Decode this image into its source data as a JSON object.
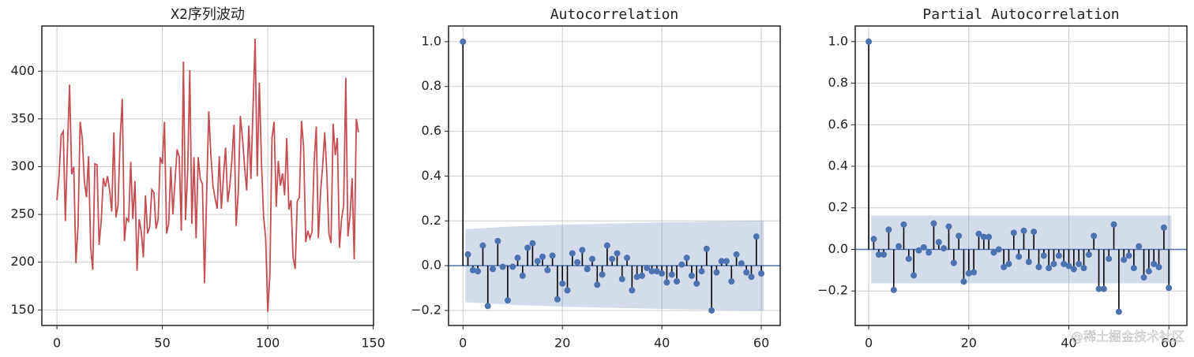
{
  "chart_data": [
    {
      "type": "line",
      "title": "X2序列波动",
      "color": "#c44e52",
      "grid": true,
      "xlim": [
        -7.15,
        150.15
      ],
      "xticks": [
        0,
        50,
        100,
        150
      ],
      "ylim": [
        133.75,
        447.25
      ],
      "yticks": [
        150,
        200,
        250,
        300,
        350,
        400
      ],
      "values": [
        265,
        290,
        333,
        337,
        243,
        320,
        386,
        292,
        300,
        199,
        237,
        347,
        330,
        285,
        268,
        311,
        216,
        192,
        303,
        302,
        218,
        243,
        288,
        279,
        290,
        275,
        253,
        336,
        247,
        260,
        330,
        371,
        222,
        246,
        243,
        305,
        245,
        285,
        191,
        245,
        232,
        205,
        270,
        230,
        237,
        276,
        273,
        235,
        245,
        310,
        303,
        347,
        230,
        240,
        300,
        250,
        285,
        318,
        310,
        233,
        410,
        244,
        295,
        401,
        240,
        310,
        225,
        310,
        287,
        282,
        178,
        270,
        358,
        313,
        280,
        267,
        256,
        311,
        256,
        290,
        320,
        263,
        280,
        308,
        344,
        238,
        273,
        353,
        330,
        300,
        275,
        343,
        287,
        361,
        434,
        290,
        388,
        305,
        248,
        225,
        148,
        188,
        330,
        347,
        258,
        306,
        280,
        293,
        270,
        330,
        255,
        265,
        205,
        193,
        264,
        268,
        348,
        320,
        221,
        233,
        225,
        232,
        305,
        342,
        225,
        272,
        300,
        336,
        294,
        230,
        220,
        345,
        312,
        330,
        215,
        245,
        260,
        393,
        227,
        248,
        288,
        203,
        350,
        336
      ]
    },
    {
      "type": "stem",
      "title": "Autocorrelation",
      "color": "#4c72b0",
      "grid": true,
      "xlim": [
        -2.9,
        63.8
      ],
      "xticks": [
        0,
        20,
        40,
        60
      ],
      "ylim": [
        -0.267,
        1.07
      ],
      "yticks": [
        {
          "value": -0.2,
          "label": "−0.2"
        },
        {
          "value": 0,
          "label": "0.0"
        },
        0.2,
        0.4,
        0.6,
        0.8,
        {
          "value": 1,
          "label": "1.0"
        }
      ],
      "confint_x": [
        0.5,
        10,
        20,
        30,
        40,
        50,
        60.5
      ],
      "confint": [
        0.163,
        0.175,
        0.183,
        0.188,
        0.193,
        0.197,
        0.2
      ],
      "values": [
        1.0,
        0.05,
        -0.02,
        -0.025,
        0.09,
        -0.18,
        -0.015,
        0.11,
        -0.005,
        -0.155,
        -0.005,
        0.035,
        -0.045,
        0.08,
        0.1,
        0.02,
        0.04,
        -0.02,
        0.045,
        -0.15,
        -0.08,
        -0.11,
        0.055,
        0.015,
        0.07,
        -0.015,
        0.03,
        -0.085,
        -0.04,
        0.09,
        0.03,
        0.055,
        -0.06,
        0.035,
        -0.11,
        -0.05,
        -0.045,
        -0.01,
        -0.025,
        -0.025,
        -0.035,
        -0.075,
        -0.04,
        -0.07,
        0.005,
        0.035,
        -0.045,
        -0.08,
        -0.025,
        0.075,
        -0.2,
        -0.03,
        0.02,
        0.02,
        -0.07,
        0.05,
        0.01,
        -0.03,
        -0.05,
        0.13,
        -0.035
      ]
    },
    {
      "type": "stem",
      "title": "Partial Autocorrelation",
      "color": "#4c72b0",
      "grid": true,
      "xlim": [
        -2.7,
        63.6
      ],
      "xticks": [
        0,
        20,
        40,
        60
      ],
      "ylim": [
        -0.366,
        1.075
      ],
      "yticks": [
        {
          "value": -0.2,
          "label": "−0.2"
        },
        {
          "value": 0,
          "label": "0.0"
        },
        0.2,
        0.4,
        0.6,
        0.8,
        {
          "value": 1,
          "label": "1.0"
        }
      ],
      "confint_x": [
        0.5,
        60.5
      ],
      "confint": [
        0.163,
        0.163
      ],
      "values": [
        1.0,
        0.05,
        -0.025,
        -0.025,
        0.095,
        -0.195,
        0.015,
        0.12,
        -0.045,
        -0.125,
        -0.005,
        0.01,
        -0.015,
        0.125,
        0.035,
        0.005,
        0.11,
        -0.065,
        0.065,
        -0.155,
        -0.115,
        -0.11,
        0.075,
        0.06,
        0.06,
        -0.015,
        0.0,
        -0.085,
        -0.07,
        0.08,
        -0.035,
        0.09,
        -0.06,
        0.085,
        -0.085,
        -0.03,
        -0.09,
        -0.07,
        -0.03,
        -0.07,
        -0.08,
        -0.095,
        -0.07,
        -0.09,
        -0.025,
        0.065,
        -0.19,
        -0.19,
        -0.045,
        0.12,
        -0.3,
        -0.05,
        -0.03,
        -0.09,
        0.015,
        -0.135,
        -0.105,
        -0.07,
        -0.085,
        0.105,
        -0.185
      ]
    }
  ],
  "watermark": "@稀土掘金技术社区"
}
